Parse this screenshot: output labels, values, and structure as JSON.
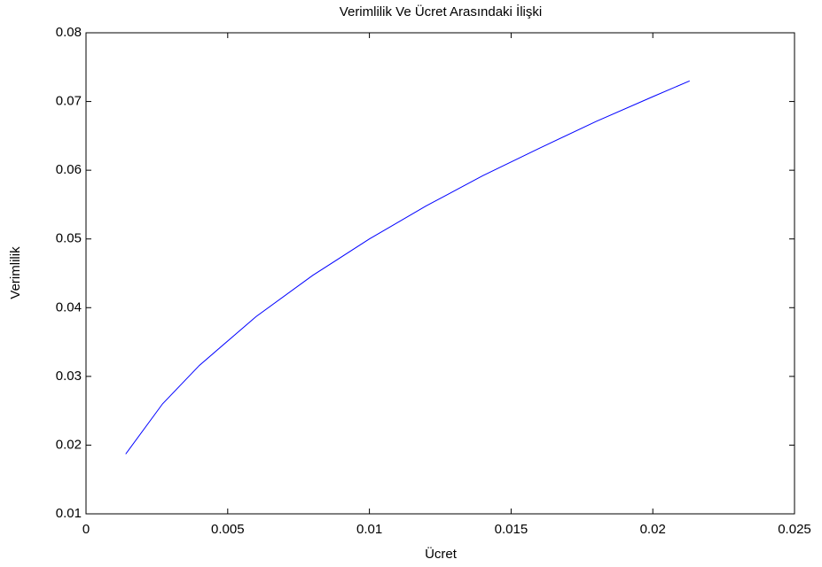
{
  "chart_data": {
    "type": "line",
    "title": "Verimlilik Ve Ücret Arasındaki İlişki",
    "x_label": "Ücret",
    "y_label": "Verimlilik",
    "x": [
      0.0014,
      0.0027,
      0.004,
      0.006,
      0.008,
      0.01,
      0.012,
      0.014,
      0.016,
      0.018,
      0.02,
      0.0213
    ],
    "series": [
      {
        "color": "#0000ff",
        "values": [
          0.0187,
          0.026,
          0.0316,
          0.0387,
          0.0447,
          0.05,
          0.0548,
          0.0592,
          0.0632,
          0.0671,
          0.0707,
          0.073
        ]
      }
    ],
    "xlim": [
      0,
      0.025
    ],
    "xticks": [
      0,
      0.005,
      0.01,
      0.015,
      0.02,
      0.025
    ],
    "ylim": [
      0.01,
      0.08
    ],
    "yticks": [
      0.01,
      0.02,
      0.03,
      0.04,
      0.05,
      0.06,
      0.07,
      0.08
    ],
    "grid": false
  }
}
